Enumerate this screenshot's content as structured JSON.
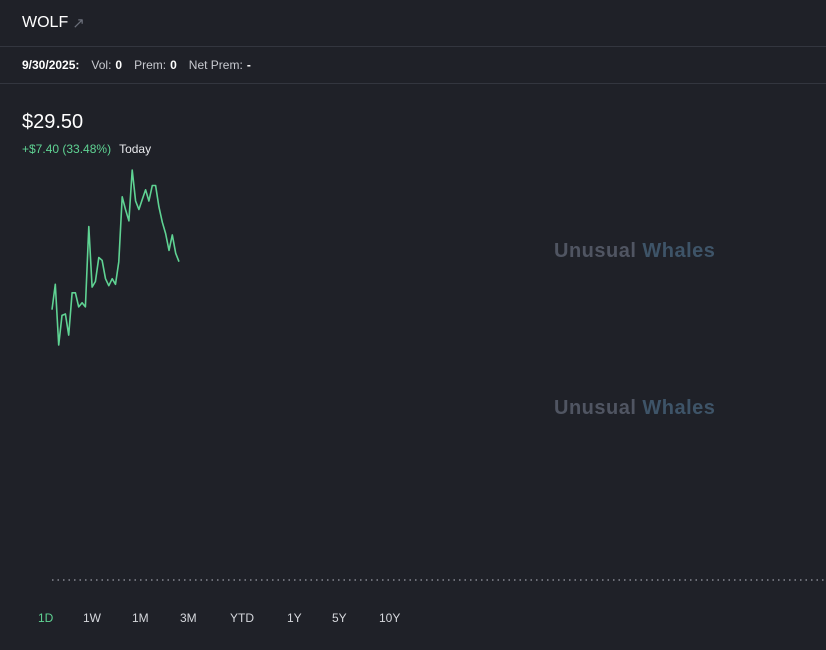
{
  "header": {
    "ticker": "WOLF",
    "external_icon": "arrow-up-right-icon"
  },
  "stats": {
    "date": "9/30/2025:",
    "vol_label": "Vol:",
    "vol_value": "0",
    "prem_label": "Prem:",
    "prem_value": "0",
    "net_prem_label": "Net Prem:",
    "net_prem_value": "-"
  },
  "quote": {
    "price": "$29.50",
    "change": "+$7.40 (33.48%)",
    "period": "Today"
  },
  "watermark": {
    "part1": "Unusual",
    "part2": "Whales"
  },
  "ranges": [
    "1D",
    "1W",
    "1M",
    "3M",
    "YTD",
    "1Y",
    "5Y",
    "10Y"
  ],
  "selected_range": "1D",
  "colors": {
    "line": "#5fd393",
    "background": "#1f2128",
    "baseline": "#9a9da6"
  },
  "chart_data": {
    "type": "line",
    "title": "",
    "xlabel": "",
    "ylabel": "",
    "grid": false,
    "series": [
      {
        "values": [
          26.1,
          27.9,
          23.6,
          25.7,
          25.8,
          24.3,
          27.3,
          27.3,
          26.3,
          26.6,
          26.3,
          32.0,
          27.7,
          28.1,
          29.8,
          29.6,
          28.3,
          27.8,
          28.3,
          27.9,
          29.5,
          34.1,
          33.2,
          32.4,
          36.0,
          33.8,
          33.2,
          33.9,
          34.6,
          33.8,
          34.9,
          34.9,
          33.4,
          32.3,
          31.5,
          30.3,
          31.4,
          30.1,
          29.5
        ]
      }
    ]
  }
}
